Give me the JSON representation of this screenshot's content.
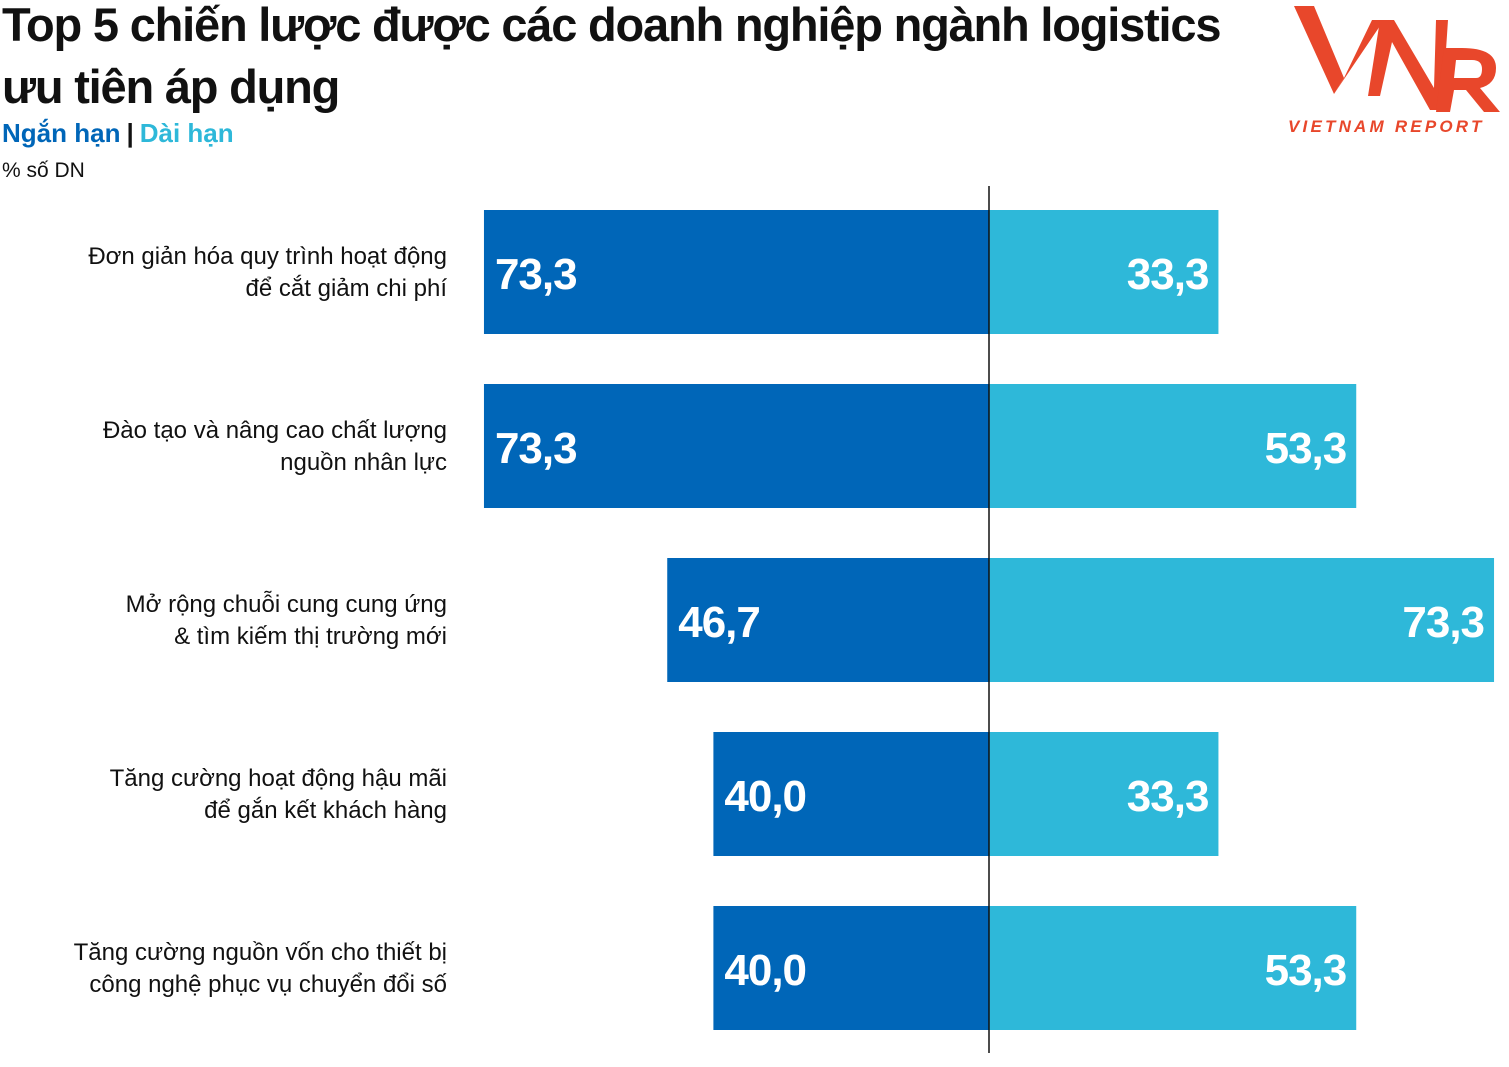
{
  "header": {
    "title": "Top 5 chiến lược được các doanh nghiệp ngành logistics ưu tiên áp dụng",
    "legend_short": "Ngắn hạn",
    "legend_separator": "|",
    "legend_long": "Dài hạn",
    "unit": "% số DN"
  },
  "logo": {
    "mark": "VNR",
    "text": "VIETNAM REPORT",
    "color": "#e8472b"
  },
  "colors": {
    "short_term": "#0066b8",
    "long_term": "#2eb8d9"
  },
  "chart_data": {
    "type": "bar",
    "orientation": "horizontal-diverging",
    "title": "Top 5 chiến lược được các doanh nghiệp ngành logistics ưu tiên áp dụng",
    "unit": "% số DN",
    "categories": [
      [
        "Đơn giản hóa quy trình hoạt động",
        "để cắt giảm chi phí"
      ],
      [
        "Đào tạo và nâng cao chất lượng",
        "nguồn nhân lực"
      ],
      [
        "Mở rộng chuỗi cung cung ứng",
        "& tìm kiếm thị trường mới"
      ],
      [
        "Tăng cường hoạt động hậu mãi",
        "để gắn kết khách hàng"
      ],
      [
        "Tăng cường nguồn vốn cho thiết bị",
        "công nghệ phục vụ chuyển đổi số"
      ]
    ],
    "series": [
      {
        "name": "Ngắn hạn",
        "values": [
          73.3,
          73.3,
          46.7,
          40.0,
          40.0
        ],
        "labels": [
          "73,3",
          "73,3",
          "46,7",
          "40,0",
          "40,0"
        ]
      },
      {
        "name": "Dài hạn",
        "values": [
          33.3,
          53.3,
          73.3,
          33.3,
          53.3
        ],
        "labels": [
          "33,3",
          "53,3",
          "73,3",
          "33,3",
          "53,3"
        ]
      }
    ],
    "xlim": [
      0,
      75
    ]
  }
}
